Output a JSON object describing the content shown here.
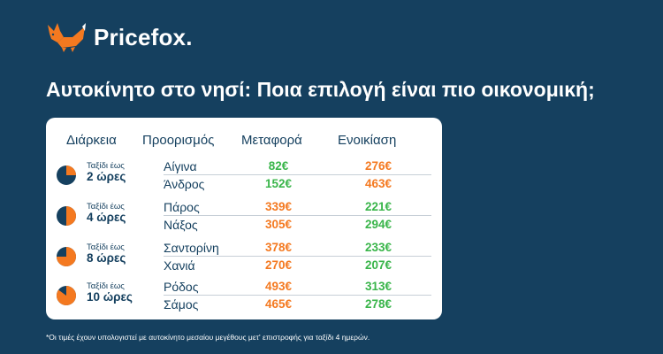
{
  "brand": {
    "name": "Pricefox.",
    "accent": "#f47920",
    "background": "#15405f"
  },
  "headline": "Αυτοκίνητο στο νησί: Ποια επιλογή είναι πιο οικονομική;",
  "table": {
    "columns": [
      "Διάρκεια",
      "Προορισμός",
      "Μεταφορά",
      "Ενοικίαση"
    ],
    "colors": {
      "cheaper": "#39b54a",
      "pricier": "#f47920"
    },
    "groups": [
      {
        "sub": "Ταξίδι έως",
        "main": "2 ώρες",
        "fraction": 0.25,
        "pie_icon": "quarter-pie-icon",
        "rows": [
          {
            "destination": "Αίγινα",
            "transport": "82€",
            "transport_color": "#39b54a",
            "rental": "276€",
            "rental_color": "#f47920"
          },
          {
            "destination": "Άνδρος",
            "transport": "152€",
            "transport_color": "#39b54a",
            "rental": "463€",
            "rental_color": "#f47920"
          }
        ]
      },
      {
        "sub": "Ταξίδι έως",
        "main": "4 ώρες",
        "fraction": 0.5,
        "pie_icon": "half-pie-icon",
        "rows": [
          {
            "destination": "Πάρος",
            "transport": "339€",
            "transport_color": "#f47920",
            "rental": "221€",
            "rental_color": "#39b54a"
          },
          {
            "destination": "Νάξος",
            "transport": "305€",
            "transport_color": "#f47920",
            "rental": "294€",
            "rental_color": "#39b54a"
          }
        ]
      },
      {
        "sub": "Ταξίδι έως",
        "main": "8 ώρες",
        "fraction": 0.75,
        "pie_icon": "three-quarter-pie-icon",
        "rows": [
          {
            "destination": "Σαντορίνη",
            "transport": "378€",
            "transport_color": "#f47920",
            "rental": "233€",
            "rental_color": "#39b54a"
          },
          {
            "destination": "Χανιά",
            "transport": "270€",
            "transport_color": "#f47920",
            "rental": "207€",
            "rental_color": "#39b54a"
          }
        ]
      },
      {
        "sub": "Ταξίδι έως",
        "main": "10 ώρες",
        "fraction": 0.85,
        "pie_icon": "most-full-pie-icon",
        "rows": [
          {
            "destination": "Ρόδος",
            "transport": "493€",
            "transport_color": "#f47920",
            "rental": "313€",
            "rental_color": "#39b54a"
          },
          {
            "destination": "Σάμος",
            "transport": "465€",
            "transport_color": "#f47920",
            "rental": "278€",
            "rental_color": "#39b54a"
          }
        ]
      }
    ]
  },
  "footnote": "*Οι τιμές έχουν υπολογιστεί με αυτοκίνητο μεσαίου μεγέθους μετ' επιστροφής για ταξίδι 4 ημερών."
}
